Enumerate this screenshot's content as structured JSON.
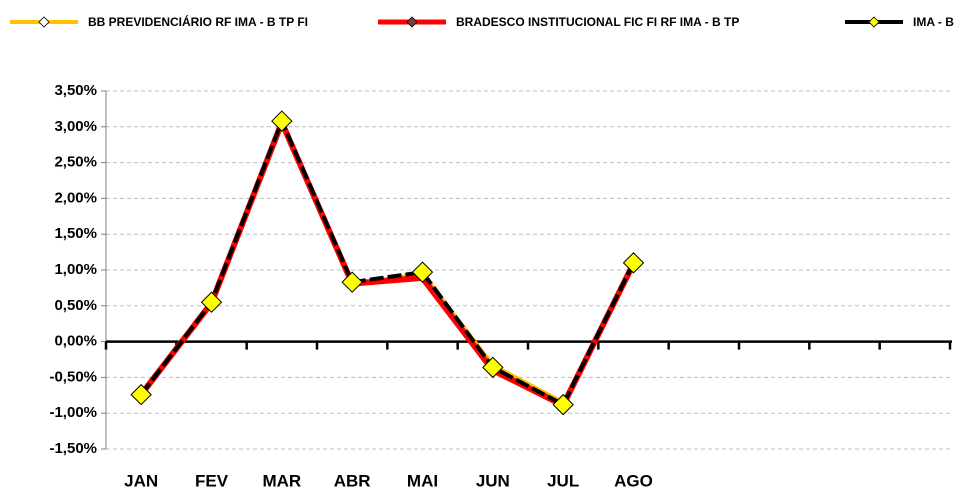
{
  "chart_data": {
    "type": "line",
    "categories": [
      "JAN",
      "FEV",
      "MAR",
      "ABR",
      "MAI",
      "JUN",
      "JUL",
      "AGO",
      null,
      null,
      null,
      null
    ],
    "series": [
      {
        "name": "BB PREVIDENCIÁRIO RF IMA - B TP FI",
        "color": "#FFC000",
        "values": [
          -0.72,
          0.56,
          3.05,
          0.8,
          0.95,
          -0.33,
          -0.85,
          1.08,
          null,
          null,
          null,
          null
        ]
      },
      {
        "name": "BRADESCO INSTITUCIONAL FIC FI RF IMA - B TP",
        "color": "#FF0000",
        "values": [
          -0.74,
          0.54,
          3.06,
          0.81,
          0.89,
          -0.4,
          -0.89,
          1.09,
          null,
          null,
          null,
          null
        ]
      },
      {
        "name": "IMA - B",
        "color": "#000000",
        "marker_color": "#FFFF00",
        "values": [
          -0.74,
          0.55,
          3.08,
          0.83,
          0.97,
          -0.36,
          -0.88,
          1.1,
          null,
          null,
          null,
          null
        ]
      }
    ],
    "ylim": [
      -1.5,
      3.5
    ],
    "yticks": [
      {
        "value": -1.5,
        "label": "-1,50%"
      },
      {
        "value": -1.0,
        "label": "-1,00%"
      },
      {
        "value": -0.5,
        "label": "-0,50%"
      },
      {
        "value": 0.0,
        "label": "0,00%"
      },
      {
        "value": 0.5,
        "label": "0,50%"
      },
      {
        "value": 1.0,
        "label": "1,00%"
      },
      {
        "value": 1.5,
        "label": "1,50%"
      },
      {
        "value": 2.0,
        "label": "2,00%"
      },
      {
        "value": 2.5,
        "label": "2,50%"
      },
      {
        "value": 3.0,
        "label": "3,00%"
      },
      {
        "value": 3.5,
        "label": "3,50%"
      }
    ],
    "grid": true,
    "legend": "top"
  }
}
